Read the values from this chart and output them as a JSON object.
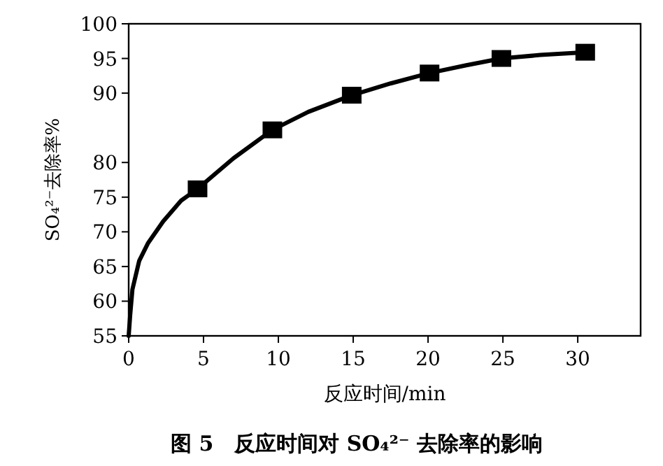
{
  "chart_data": {
    "type": "scatter",
    "title": "图 5　反应时间对 SO₄²⁻ 去除率的影响",
    "xlabel": "反应时间/min",
    "ylabel": "SO₄²⁻去除率%",
    "xlim": [
      0,
      34.2
    ],
    "ylim": [
      55,
      100
    ],
    "xticks": [
      0,
      5,
      10,
      15,
      20,
      25,
      30
    ],
    "yticks": [
      55,
      60,
      65,
      70,
      75,
      80,
      90,
      95,
      100
    ],
    "grid": false,
    "series": [
      {
        "type": "line",
        "color": "#000000",
        "marker": "none",
        "line_style": "solid",
        "x": [
          0,
          0.1,
          0.25,
          0.7,
          1.3,
          2.3,
          3.5,
          4.6,
          7,
          9.6,
          12,
          14.9,
          17.5,
          20.1,
          22.5,
          24.9,
          27.5,
          30.5
        ],
        "values": [
          55,
          58,
          61.7,
          65.8,
          68.4,
          71.5,
          74.5,
          76.2,
          80.6,
          84.7,
          87.3,
          89.7,
          91.4,
          92.9,
          94.0,
          95.0,
          95.5,
          95.9
        ]
      },
      {
        "color": "#000000",
        "marker": "square",
        "x": [
          4.6,
          9.6,
          14.9,
          20.1,
          24.9,
          30.5
        ],
        "values": [
          76.2,
          84.7,
          89.7,
          92.9,
          95.0,
          95.9
        ]
      }
    ]
  }
}
